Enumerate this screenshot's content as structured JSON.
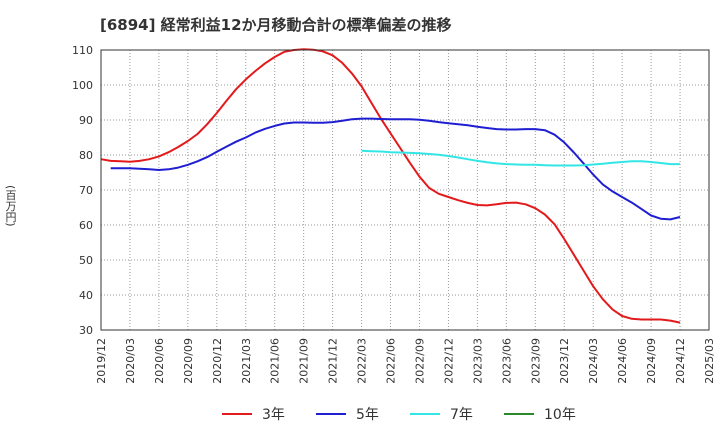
{
  "title": "[6894]  経常利益12か月移動合計の標準偏差の推移",
  "colors": {
    "3y": "#e31a1c",
    "5y": "#1f1fd1",
    "7y": "#33e6e6",
    "10y": "#2a8a2a"
  },
  "chart_data": {
    "type": "line",
    "title": "[6894]  経常利益12か月移動合計の標準偏差の推移",
    "ylabel": "(百万円)",
    "ylim": [
      30,
      110
    ],
    "yticks": [
      30,
      40,
      50,
      60,
      70,
      80,
      90,
      100,
      110
    ],
    "xlim": [
      "2019-12",
      "2025-03"
    ],
    "xticks": [
      "2019/12",
      "2020/03",
      "2020/06",
      "2020/09",
      "2020/12",
      "2021/03",
      "2021/06",
      "2021/09",
      "2021/12",
      "2022/03",
      "2022/06",
      "2022/09",
      "2022/12",
      "2023/03",
      "2023/06",
      "2023/09",
      "2023/12",
      "2024/03",
      "2024/06",
      "2024/09",
      "2024/12",
      "2025/03"
    ],
    "grid": true,
    "legend": "bottom",
    "series": [
      {
        "name": "3年",
        "color": "#e31a1c",
        "points": [
          [
            "2019-12",
            78.8
          ],
          [
            "2020-01",
            78.3
          ],
          [
            "2020-02",
            78.2
          ],
          [
            "2020-03",
            78.1
          ],
          [
            "2020-04",
            78.3
          ],
          [
            "2020-05",
            78.8
          ],
          [
            "2020-06",
            79.6
          ],
          [
            "2020-07",
            80.8
          ],
          [
            "2020-08",
            82.3
          ],
          [
            "2020-09",
            84.0
          ],
          [
            "2020-10",
            86.0
          ],
          [
            "2020-11",
            88.8
          ],
          [
            "2020-12",
            92.0
          ],
          [
            "2021-01",
            95.5
          ],
          [
            "2021-02",
            98.8
          ],
          [
            "2021-03",
            101.6
          ],
          [
            "2021-04",
            104.0
          ],
          [
            "2021-05",
            106.2
          ],
          [
            "2021-06",
            108.0
          ],
          [
            "2021-07",
            109.5
          ],
          [
            "2021-08",
            110.0
          ],
          [
            "2021-09",
            110.2
          ],
          [
            "2021-10",
            110.1
          ],
          [
            "2021-11",
            109.6
          ],
          [
            "2021-12",
            108.5
          ],
          [
            "2022-01",
            106.3
          ],
          [
            "2022-02",
            103.3
          ],
          [
            "2022-03",
            99.6
          ],
          [
            "2022-04",
            95.0
          ],
          [
            "2022-05",
            90.4
          ],
          [
            "2022-06",
            86.2
          ],
          [
            "2022-07",
            82.0
          ],
          [
            "2022-08",
            77.8
          ],
          [
            "2022-09",
            73.8
          ],
          [
            "2022-10",
            70.6
          ],
          [
            "2022-11",
            68.9
          ],
          [
            "2022-12",
            68.0
          ],
          [
            "2023-01",
            67.1
          ],
          [
            "2023-02",
            66.3
          ],
          [
            "2023-03",
            65.7
          ],
          [
            "2023-04",
            65.6
          ],
          [
            "2023-05",
            65.9
          ],
          [
            "2023-06",
            66.3
          ],
          [
            "2023-07",
            66.4
          ],
          [
            "2023-08",
            65.9
          ],
          [
            "2023-09",
            64.8
          ],
          [
            "2023-10",
            63.0
          ],
          [
            "2023-11",
            60.2
          ],
          [
            "2023-12",
            56.0
          ],
          [
            "2024-01",
            51.5
          ],
          [
            "2024-02",
            47.0
          ],
          [
            "2024-03",
            42.5
          ],
          [
            "2024-04",
            38.8
          ],
          [
            "2024-05",
            35.9
          ],
          [
            "2024-06",
            34.0
          ],
          [
            "2024-07",
            33.2
          ],
          [
            "2024-08",
            33.0
          ],
          [
            "2024-09",
            33.0
          ],
          [
            "2024-10",
            33.0
          ],
          [
            "2024-11",
            32.7
          ],
          [
            "2024-12",
            32.1
          ]
        ]
      },
      {
        "name": "5年",
        "color": "#1f1fd1",
        "points": [
          [
            "2020-01",
            76.2
          ],
          [
            "2020-02",
            76.2
          ],
          [
            "2020-03",
            76.2
          ],
          [
            "2020-04",
            76.1
          ],
          [
            "2020-05",
            75.9
          ],
          [
            "2020-06",
            75.7
          ],
          [
            "2020-07",
            75.9
          ],
          [
            "2020-08",
            76.4
          ],
          [
            "2020-09",
            77.2
          ],
          [
            "2020-10",
            78.2
          ],
          [
            "2020-11",
            79.4
          ],
          [
            "2020-12",
            80.9
          ],
          [
            "2021-01",
            82.4
          ],
          [
            "2021-02",
            83.8
          ],
          [
            "2021-03",
            85.0
          ],
          [
            "2021-04",
            86.4
          ],
          [
            "2021-05",
            87.5
          ],
          [
            "2021-06",
            88.3
          ],
          [
            "2021-07",
            89.0
          ],
          [
            "2021-08",
            89.3
          ],
          [
            "2021-09",
            89.3
          ],
          [
            "2021-10",
            89.2
          ],
          [
            "2021-11",
            89.2
          ],
          [
            "2021-12",
            89.4
          ],
          [
            "2022-01",
            89.8
          ],
          [
            "2022-02",
            90.2
          ],
          [
            "2022-03",
            90.4
          ],
          [
            "2022-04",
            90.4
          ],
          [
            "2022-05",
            90.3
          ],
          [
            "2022-06",
            90.2
          ],
          [
            "2022-07",
            90.2
          ],
          [
            "2022-08",
            90.2
          ],
          [
            "2022-09",
            90.1
          ],
          [
            "2022-10",
            89.8
          ],
          [
            "2022-11",
            89.4
          ],
          [
            "2022-12",
            89.1
          ],
          [
            "2023-01",
            88.8
          ],
          [
            "2023-02",
            88.5
          ],
          [
            "2023-03",
            88.1
          ],
          [
            "2023-04",
            87.7
          ],
          [
            "2023-05",
            87.4
          ],
          [
            "2023-06",
            87.3
          ],
          [
            "2023-07",
            87.3
          ],
          [
            "2023-08",
            87.4
          ],
          [
            "2023-09",
            87.4
          ],
          [
            "2023-10",
            87.1
          ],
          [
            "2023-11",
            85.8
          ],
          [
            "2023-12",
            83.6
          ],
          [
            "2024-01",
            80.7
          ],
          [
            "2024-02",
            77.6
          ],
          [
            "2024-03",
            74.4
          ],
          [
            "2024-04",
            71.6
          ],
          [
            "2024-05",
            69.6
          ],
          [
            "2024-06",
            68.0
          ],
          [
            "2024-07",
            66.4
          ],
          [
            "2024-08",
            64.6
          ],
          [
            "2024-09",
            62.7
          ],
          [
            "2024-10",
            61.8
          ],
          [
            "2024-11",
            61.6
          ],
          [
            "2024-12",
            62.3
          ]
        ]
      },
      {
        "name": "7年",
        "color": "#33e6e6",
        "points": [
          [
            "2022-03",
            81.2
          ],
          [
            "2022-04",
            81.1
          ],
          [
            "2022-05",
            81.0
          ],
          [
            "2022-06",
            80.8
          ],
          [
            "2022-07",
            80.7
          ],
          [
            "2022-08",
            80.6
          ],
          [
            "2022-09",
            80.5
          ],
          [
            "2022-10",
            80.3
          ],
          [
            "2022-11",
            80.1
          ],
          [
            "2022-12",
            79.7
          ],
          [
            "2023-01",
            79.3
          ],
          [
            "2023-02",
            78.8
          ],
          [
            "2023-03",
            78.3
          ],
          [
            "2023-04",
            77.9
          ],
          [
            "2023-05",
            77.6
          ],
          [
            "2023-06",
            77.4
          ],
          [
            "2023-07",
            77.3
          ],
          [
            "2023-08",
            77.2
          ],
          [
            "2023-09",
            77.2
          ],
          [
            "2023-10",
            77.1
          ],
          [
            "2023-11",
            77.0
          ],
          [
            "2023-12",
            77.0
          ],
          [
            "2024-01",
            77.0
          ],
          [
            "2024-02",
            77.1
          ],
          [
            "2024-03",
            77.3
          ],
          [
            "2024-04",
            77.5
          ],
          [
            "2024-05",
            77.8
          ],
          [
            "2024-06",
            78.0
          ],
          [
            "2024-07",
            78.2
          ],
          [
            "2024-08",
            78.2
          ],
          [
            "2024-09",
            78.0
          ],
          [
            "2024-10",
            77.7
          ],
          [
            "2024-11",
            77.4
          ],
          [
            "2024-12",
            77.4
          ]
        ]
      },
      {
        "name": "10年",
        "color": "#2a8a2a",
        "points": []
      }
    ]
  }
}
